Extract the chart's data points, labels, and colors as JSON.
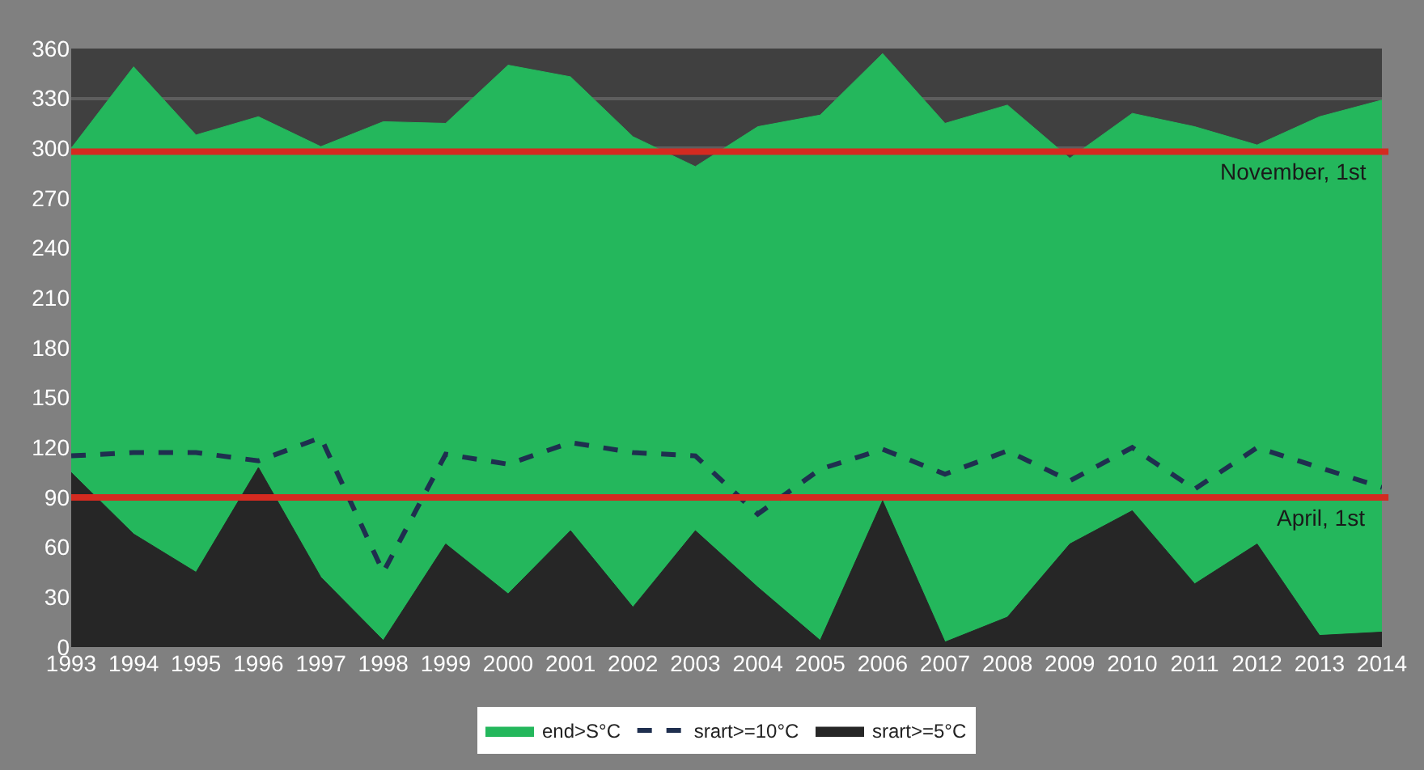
{
  "chart_data": {
    "type": "area",
    "categories": [
      "1993",
      "1994",
      "1995",
      "1996",
      "1997",
      "1998",
      "1999",
      "2000",
      "2001",
      "2002",
      "2003",
      "2004",
      "2005",
      "2006",
      "2007",
      "2008",
      "2009",
      "2010",
      "2011",
      "2012",
      "2013",
      "2014"
    ],
    "series": [
      {
        "name": "end>S°C",
        "color": "#24b75c",
        "values": [
          300,
          349,
          308,
          319,
          301,
          316,
          315,
          350,
          343,
          307,
          289,
          313,
          320,
          357,
          315,
          326,
          294,
          321,
          313,
          302,
          319,
          329
        ]
      },
      {
        "name": "srart>=10°C",
        "type": "line",
        "color": "#1f2f4f",
        "line_style": "dashed",
        "values": [
          115,
          117,
          117,
          112,
          126,
          45,
          116,
          110,
          123,
          117,
          115,
          80,
          107,
          119,
          104,
          118,
          100,
          120,
          95,
          120,
          108,
          96
        ]
      },
      {
        "name": "srart>=5°C",
        "color": "#262626",
        "values": [
          105,
          68,
          45,
          108,
          42,
          4,
          62,
          32,
          70,
          24,
          70,
          36,
          4,
          88,
          3,
          18,
          62,
          82,
          38,
          62,
          7,
          9
        ]
      }
    ],
    "ylim": [
      0,
      360
    ],
    "yticks": [
      0,
      30,
      60,
      90,
      120,
      150,
      180,
      210,
      240,
      270,
      300,
      330,
      360
    ],
    "grid": "y",
    "legend": "bottom",
    "ref_lines": [
      {
        "axis": "y",
        "value": 298,
        "label": "November, 1st",
        "color": "#d42a20"
      },
      {
        "axis": "y",
        "value": 90,
        "label": "April, 1st",
        "color": "#d42a20"
      }
    ]
  }
}
